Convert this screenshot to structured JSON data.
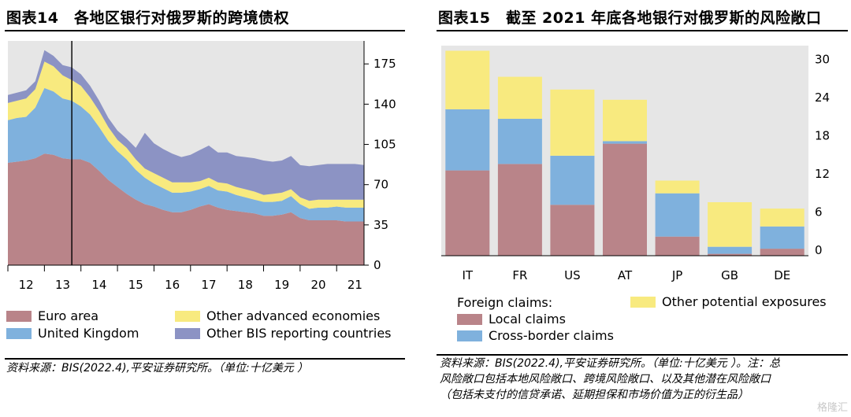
{
  "left_panel": {
    "title": "图表14　各地区银行对俄罗斯的跨境债权",
    "source": "资料来源：BIS(2022.4),平安证券研究所。（单位:十亿美元 ）"
  },
  "right_panel": {
    "title": "图表15　截至 2021 年底各地银行对俄罗斯的风险敞口",
    "source_lines": [
      "资料来源：BIS(2022.4),平安证券研究所。（单位:十亿美元 ）。注：总",
      "风险敞口包括本地风险敞口、跨境风险敞口、以及其他潜在风险敞口",
      "（包括未支付的信贷承诺、延期担保和市场价值为正的衍生品）"
    ]
  },
  "watermark": "格隆汇",
  "colors": {
    "euro_area": "#b98489",
    "united_kingdom": "#7fb1dd",
    "other_advanced": "#f8ea7f",
    "other_bis": "#8c93c4",
    "plot_bg": "#e6e6e6",
    "local_claims": "#b98489",
    "cross_border": "#7fb1dd",
    "other_potential": "#f8ea7f"
  },
  "chart_data": [
    {
      "type": "area",
      "stacked": true,
      "x_ticks": [
        "12",
        "13",
        "14",
        "15",
        "16",
        "17",
        "18",
        "19",
        "20",
        "21"
      ],
      "x_start": 2012.0,
      "x_end": 2021.75,
      "ylim": [
        0,
        195
      ],
      "y_ticks": [
        0,
        35,
        70,
        105,
        140,
        175
      ],
      "y_axis_side": "right",
      "vertical_line_x": 2013.75,
      "grid": false,
      "x": [
        2012.0,
        2012.25,
        2012.5,
        2012.75,
        2013.0,
        2013.25,
        2013.5,
        2013.75,
        2014.0,
        2014.25,
        2014.5,
        2014.75,
        2015.0,
        2015.25,
        2015.5,
        2015.75,
        2016.0,
        2016.25,
        2016.5,
        2016.75,
        2017.0,
        2017.25,
        2017.5,
        2017.75,
        2018.0,
        2018.25,
        2018.5,
        2018.75,
        2019.0,
        2019.25,
        2019.5,
        2019.75,
        2020.0,
        2020.25,
        2020.5,
        2020.75,
        2021.0,
        2021.25,
        2021.5,
        2021.75
      ],
      "series": [
        {
          "name": "Euro area",
          "values": [
            89,
            90,
            91,
            93,
            97,
            96,
            93,
            92,
            92,
            89,
            82,
            74,
            68,
            62,
            57,
            53,
            51,
            48,
            46,
            46,
            48,
            51,
            53,
            50,
            48,
            47,
            46,
            45,
            43,
            43,
            44,
            46,
            41,
            39,
            39,
            39,
            39,
            38,
            38,
            38
          ]
        },
        {
          "name": "United Kingdom",
          "values": [
            37,
            38,
            38,
            44,
            57,
            55,
            52,
            51,
            46,
            42,
            38,
            34,
            31,
            30,
            26,
            23,
            20,
            19,
            17,
            17,
            16,
            15,
            16,
            15,
            16,
            14,
            13,
            12,
            12,
            12,
            12,
            14,
            12,
            10,
            11,
            11,
            12,
            12,
            12,
            12
          ]
        },
        {
          "name": "Other advanced economies",
          "values": [
            15,
            15,
            16,
            16,
            23,
            22,
            20,
            18,
            18,
            15,
            14,
            12,
            10,
            10,
            9,
            8,
            9,
            9,
            9,
            9,
            8,
            7,
            7,
            7,
            7,
            7,
            7,
            7,
            6,
            7,
            7,
            6,
            6,
            7,
            7,
            7,
            6,
            7,
            7,
            7
          ]
        },
        {
          "name": "Other BIS reporting countries",
          "values": [
            7,
            7,
            7,
            7,
            10,
            9,
            9,
            11,
            10,
            10,
            9,
            8,
            8,
            8,
            10,
            31,
            26,
            25,
            25,
            22,
            24,
            27,
            28,
            26,
            27,
            27,
            28,
            29,
            30,
            28,
            28,
            29,
            28,
            30,
            30,
            31,
            31,
            31,
            31,
            30
          ]
        }
      ]
    },
    {
      "type": "bar",
      "stacked": true,
      "categories": [
        "IT",
        "FR",
        "US",
        "AT",
        "JP",
        "GB",
        "DE"
      ],
      "ylim": [
        0,
        33
      ],
      "y_ticks": [
        0,
        6,
        12,
        18,
        24,
        30
      ],
      "y_axis_side": "right",
      "grid": false,
      "legend_title": "Foreign claims:",
      "series": [
        {
          "name": "Local claims",
          "values": [
            13.4,
            14.4,
            8.0,
            17.6,
            3.0,
            0.3,
            1.1
          ]
        },
        {
          "name": "Cross-border claims",
          "values": [
            9.6,
            7.1,
            7.7,
            0.4,
            6.8,
            1.1,
            3.5
          ]
        },
        {
          "name": "Other potential exposures",
          "values": [
            9.2,
            6.6,
            10.4,
            6.5,
            2.0,
            7.0,
            2.8
          ]
        }
      ]
    }
  ]
}
